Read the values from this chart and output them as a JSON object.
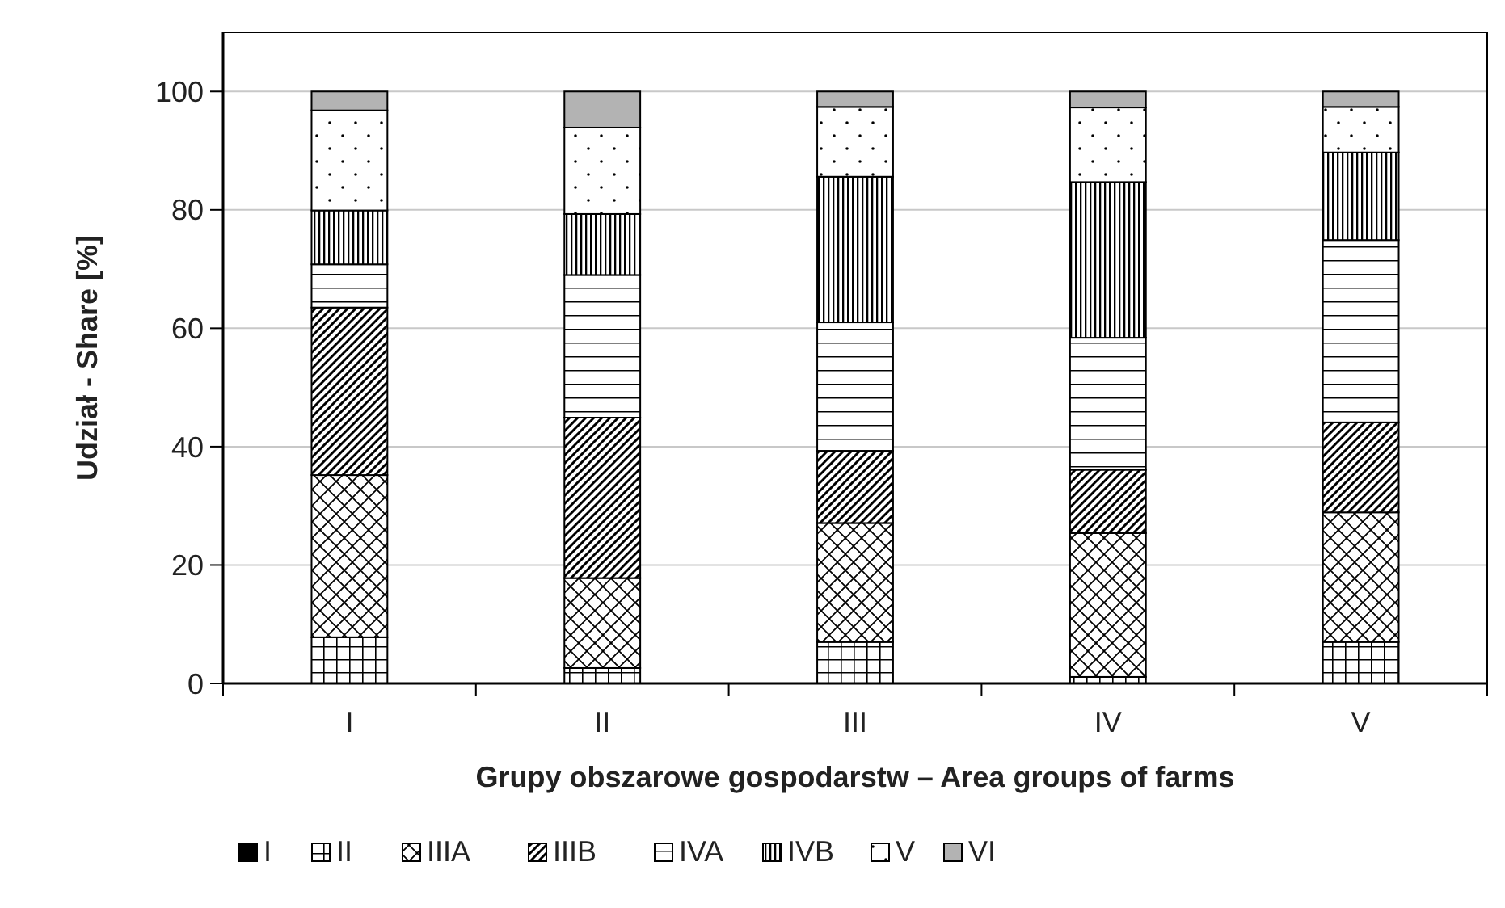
{
  "chart_data": {
    "type": "bar",
    "stacked": true,
    "xlabel": "Grupy obszarowe gospodarstw – Area groups of farms",
    "ylabel": "Udział  - Share [%]",
    "categories": [
      "I",
      "II",
      "III",
      "IV",
      "V"
    ],
    "ylim": [
      0,
      110
    ],
    "yticks": [
      0,
      20,
      40,
      60,
      80,
      100
    ],
    "grid": "y",
    "legend": "bottom",
    "series": [
      {
        "name": "I",
        "color": "#000000",
        "values": [
          0,
          0,
          0,
          0,
          0
        ]
      },
      {
        "name": "II",
        "color": "#ffffff",
        "values": [
          7.8,
          2.6,
          7.0,
          1.1,
          7.0
        ]
      },
      {
        "name": "IIIA",
        "color": "#ffffff",
        "values": [
          27.4,
          15.2,
          20.1,
          24.3,
          21.9
        ]
      },
      {
        "name": "IIIB",
        "color": "#ffffff",
        "values": [
          28.3,
          27.1,
          12.2,
          10.7,
          15.2
        ]
      },
      {
        "name": "IVA",
        "color": "#ffffff",
        "values": [
          7.3,
          24.1,
          21.7,
          22.3,
          30.8
        ]
      },
      {
        "name": "IVB",
        "color": "#ffffff",
        "values": [
          9.1,
          10.3,
          24.6,
          26.3,
          14.8
        ]
      },
      {
        "name": "V",
        "color": "#ffffff",
        "values": [
          16.9,
          14.6,
          11.8,
          12.6,
          7.7
        ]
      },
      {
        "name": "VI",
        "color": "#b3b3b3",
        "values": [
          3.2,
          6.1,
          2.6,
          2.7,
          2.6
        ]
      }
    ]
  }
}
